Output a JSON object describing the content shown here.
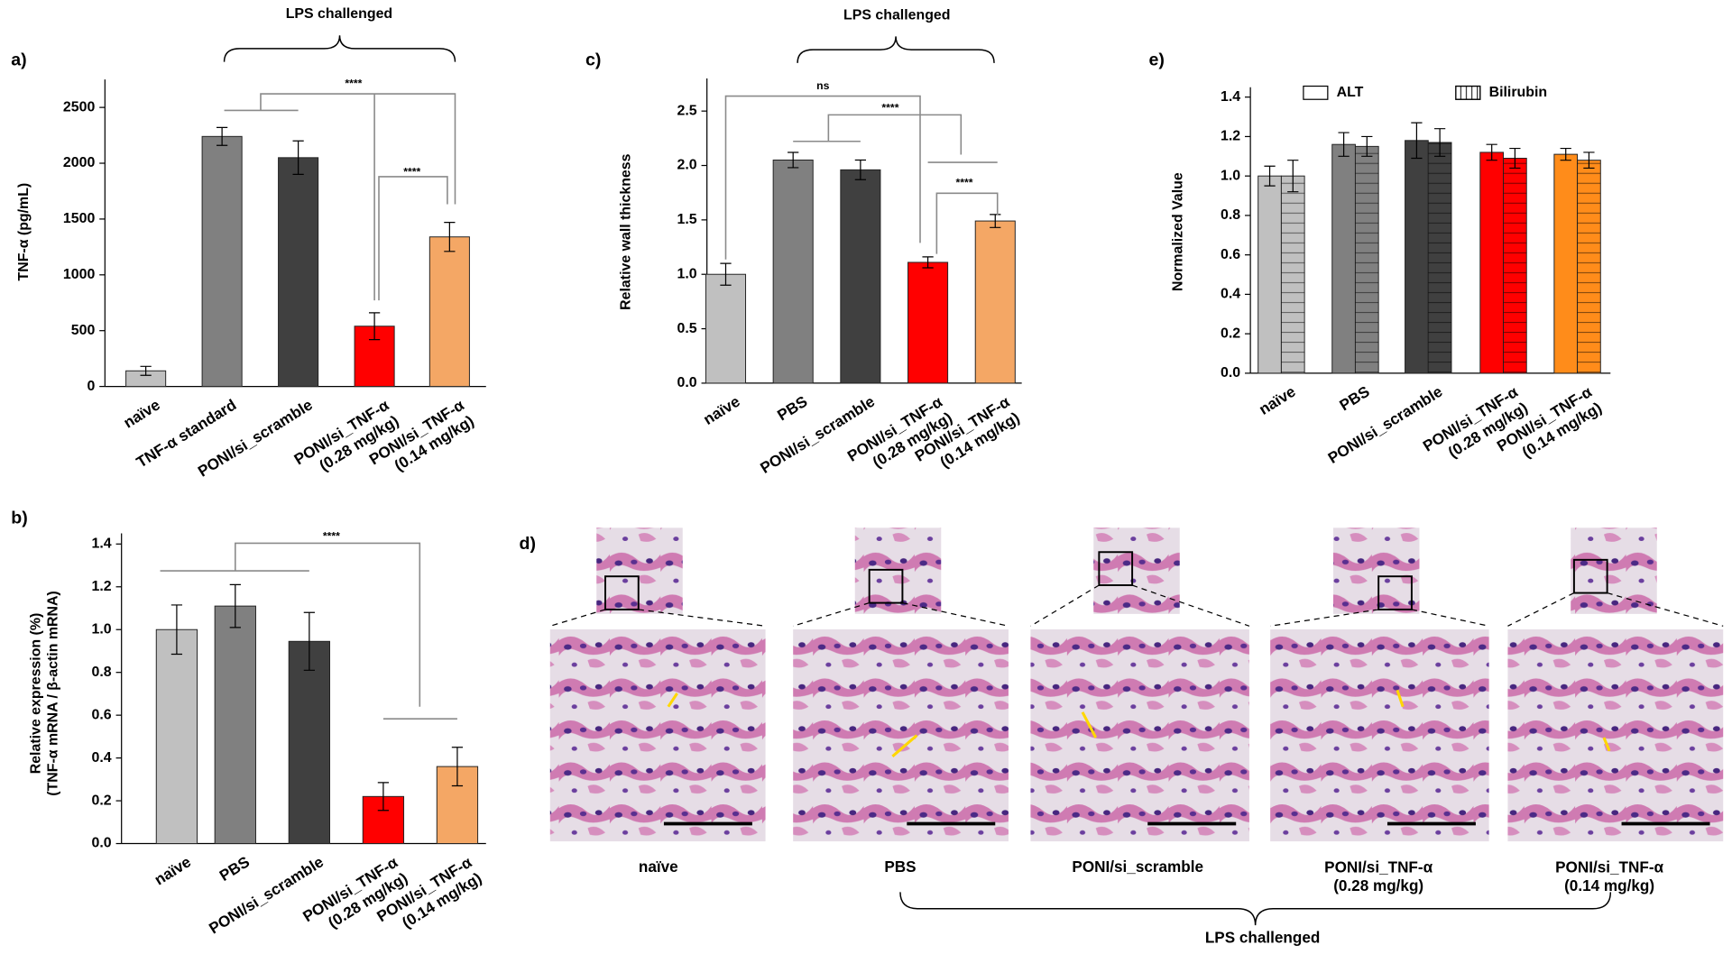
{
  "chart_data": [
    {
      "type": "bar",
      "panel_label": "a)",
      "ylabel": "TNF-α (pg/mL)",
      "group_label": "LPS challenged",
      "categories": [
        "naïve",
        "TNF-α standard",
        "PONI/si_scramble",
        "PONI/si_TNF-α\n(0.28 mg/kg)",
        "PONI/si_TNF-α\n(0.14 mg/kg)"
      ],
      "values": [
        140,
        2240,
        2050,
        540,
        1340
      ],
      "errors": [
        40,
        80,
        150,
        120,
        130
      ],
      "colors": [
        "#c0c0c0",
        "#808080",
        "#404040",
        "#ff0000",
        "#f4a765"
      ],
      "ylim": [
        0,
        2750
      ],
      "yticks": [
        0,
        500,
        1000,
        1500,
        2000,
        2500
      ],
      "annotations": [
        "****",
        "****"
      ]
    },
    {
      "type": "bar",
      "panel_label": "c)",
      "ylabel": "Relative wall thickness",
      "group_label": "LPS challenged",
      "categories": [
        "naïve",
        "PBS",
        "PONI/si_scramble",
        "PONI/si_TNF-α\n(0.28 mg/kg)",
        "PONI/si_TNF-α\n(0.14 mg/kg)"
      ],
      "values": [
        1.0,
        2.05,
        1.96,
        1.11,
        1.49
      ],
      "errors": [
        0.1,
        0.07,
        0.09,
        0.05,
        0.06
      ],
      "colors": [
        "#c0c0c0",
        "#808080",
        "#404040",
        "#ff0000",
        "#f4a765"
      ],
      "ylim": [
        0,
        2.8
      ],
      "yticks": [
        {
          "value": 0,
          "label": "0.0"
        },
        0.5,
        {
          "value": 1,
          "label": "1.0"
        },
        1.5,
        {
          "value": 2,
          "label": "2.0"
        },
        2.5
      ],
      "annotations": [
        "ns",
        "****",
        "****"
      ]
    },
    {
      "type": "bar",
      "panel_label": "e)",
      "ylabel": "Normalized Value",
      "categories": [
        "naïve",
        "PBS",
        "PONI/si_scramble",
        "PONI/si_TNF-α\n(0.28 mg/kg)",
        "PONI/si_TNF-α\n(0.14 mg/kg)"
      ],
      "colors": [
        "#c0c0c0",
        "#808080",
        "#404040",
        "#ff0000",
        "#ff8c1a"
      ],
      "series": [
        {
          "name": "ALT",
          "pattern": "solid",
          "values": [
            1.0,
            1.16,
            1.18,
            1.12,
            1.11
          ],
          "errors": [
            0.05,
            0.06,
            0.09,
            0.04,
            0.03
          ]
        },
        {
          "name": "Bilirubin",
          "pattern": "lines",
          "values": [
            1.0,
            1.15,
            1.17,
            1.09,
            1.08
          ],
          "errors": [
            0.08,
            0.05,
            0.07,
            0.05,
            0.04
          ]
        }
      ],
      "ylim": [
        0,
        1.45
      ],
      "yticks": [
        {
          "value": 0,
          "label": "0.0"
        },
        0.2,
        0.4,
        0.6,
        0.8,
        {
          "value": 1,
          "label": "1.0"
        },
        1.2,
        1.4
      ]
    },
    {
      "type": "bar",
      "panel_label": "b)",
      "ylabel": "Relative expression (%)\n(TNF-α mRNA / β-actin mRNA)",
      "categories": [
        "naïve",
        "PBS",
        "PONI/si_scramble",
        "PONI/si_TNF-α\n(0.28 mg/kg)",
        "PONI/si_TNF-α\n(0.14 mg/kg)"
      ],
      "values": [
        1.0,
        1.11,
        0.945,
        0.22,
        0.36
      ],
      "errors": [
        0.115,
        0.1,
        0.135,
        0.065,
        0.09
      ],
      "colors": [
        "#c0c0c0",
        "#808080",
        "#404040",
        "#ff0000",
        "#f4a765"
      ],
      "ylim": [
        0,
        1.45
      ],
      "yticks": [
        {
          "value": 0,
          "label": "0.0"
        },
        0.2,
        0.4,
        0.6,
        0.8,
        {
          "value": 1,
          "label": "1.0"
        },
        1.2,
        1.4
      ],
      "annotations": [
        "****"
      ]
    }
  ],
  "panel_d": {
    "panel_label": "d)",
    "group_label": "LPS challenged",
    "captions": [
      "naïve",
      "PBS",
      "PONI/si_scramble",
      "PONI/si_TNF-α\n(0.28 mg/kg)",
      "PONI/si_TNF-α\n(0.14 mg/kg)"
    ]
  }
}
